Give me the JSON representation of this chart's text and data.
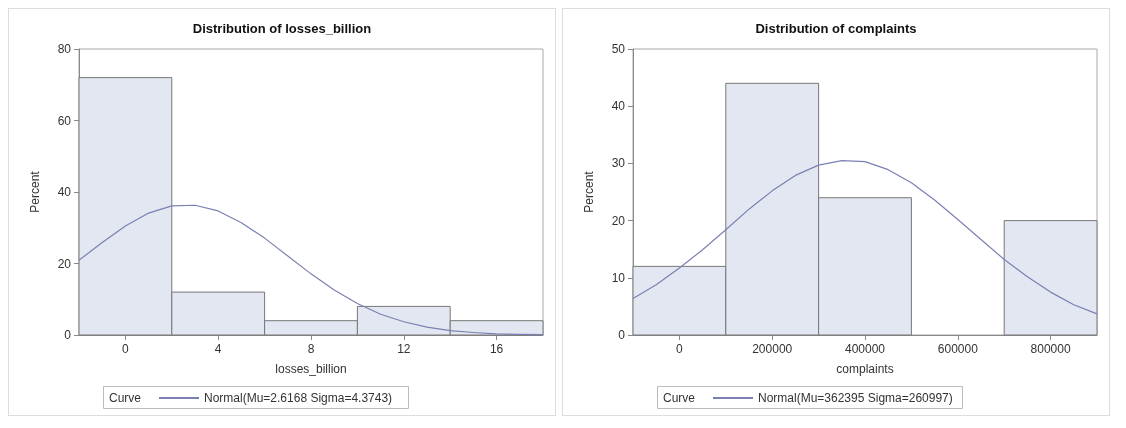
{
  "chart_data": [
    {
      "type": "histogram",
      "title": "Distribution of losses_billion",
      "xlabel": "losses_billion",
      "ylabel": "Percent",
      "legend_title": "Curve",
      "legend": "bottom",
      "grid": false,
      "bins": [
        -2,
        2,
        6,
        10,
        14,
        18
      ],
      "values": [
        72,
        12,
        4,
        8,
        4
      ],
      "color": "#e3e7f1",
      "series": [
        {
          "type": "line",
          "name": "Normal(Mu=2.6168 Sigma=4.3743)",
          "color": "#7a80b3",
          "x": [
            -2,
            -1,
            0,
            1,
            2,
            3,
            4,
            5,
            6,
            7,
            8,
            9,
            10,
            11,
            12,
            13,
            14,
            15,
            16,
            17,
            18
          ],
          "values": [
            20.9,
            25.9,
            30.5,
            34.1,
            36.1,
            36.3,
            34.7,
            31.4,
            27.1,
            22.1,
            17.1,
            12.6,
            8.8,
            5.8,
            3.7,
            2.2,
            1.2,
            0.7,
            0.3,
            0.2,
            0.1
          ]
        }
      ],
      "xlim": [
        -2,
        18
      ],
      "xticks": [
        0,
        4,
        8,
        12,
        16
      ],
      "ylim": [
        0,
        80
      ],
      "yticks": [
        0,
        20,
        40,
        60,
        80
      ]
    },
    {
      "type": "histogram",
      "title": "Distribution of complaints",
      "xlabel": "complaints",
      "ylabel": "Percent",
      "legend_title": "Curve",
      "legend": "bottom",
      "grid": false,
      "bins": [
        -100000,
        100000,
        300000,
        500000,
        700000,
        900000
      ],
      "values": [
        12,
        44,
        24,
        0,
        20
      ],
      "color": "#e3e7f1",
      "series": [
        {
          "type": "line",
          "name": "Normal(Mu=362395 Sigma=260997)",
          "color": "#7a80b3",
          "x": [
            -100000,
            -50000,
            0,
            50000,
            100000,
            150000,
            200000,
            250000,
            300000,
            350000,
            400000,
            450000,
            500000,
            550000,
            600000,
            650000,
            700000,
            750000,
            800000,
            850000,
            900000
          ],
          "values": [
            6.4,
            8.8,
            11.7,
            14.9,
            18.4,
            22.0,
            25.2,
            27.9,
            29.7,
            30.5,
            30.3,
            28.9,
            26.6,
            23.6,
            20.2,
            16.7,
            13.2,
            10.2,
            7.5,
            5.3,
            3.7
          ]
        }
      ],
      "xlim": [
        -100000,
        900000
      ],
      "xticks": [
        0,
        200000,
        400000,
        600000,
        800000
      ],
      "ylim": [
        0,
        50
      ],
      "yticks": [
        0,
        10,
        20,
        30,
        40,
        50
      ]
    }
  ]
}
